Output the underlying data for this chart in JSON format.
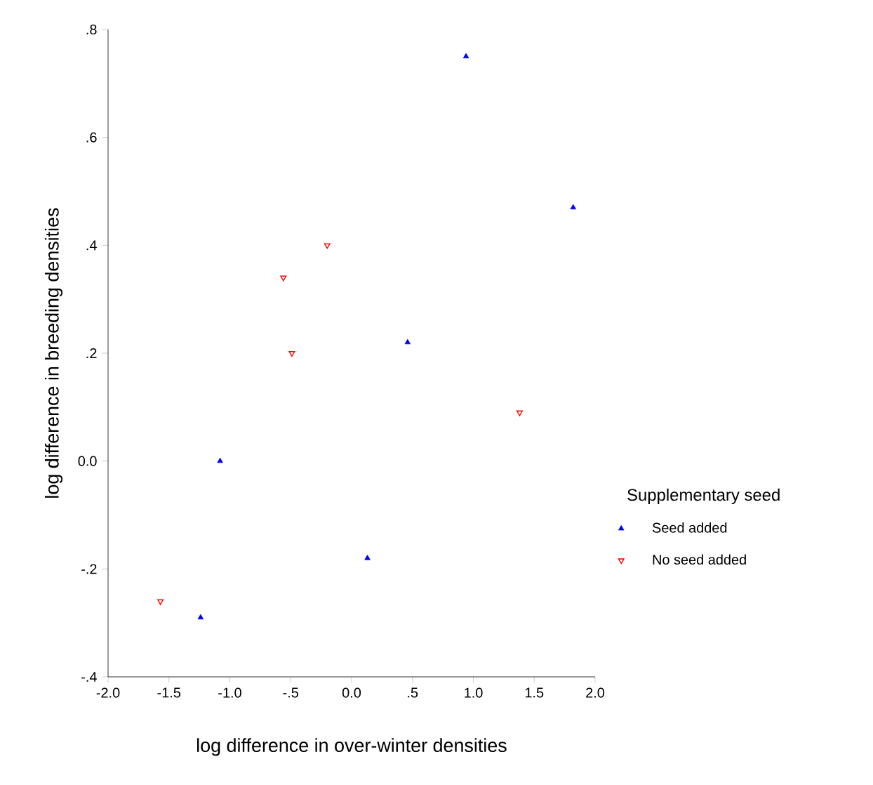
{
  "chart_data": {
    "type": "scatter",
    "xlabel": "log difference in over-winter densities",
    "ylabel": "log difference in breeding densities",
    "legend_title": "Supplementary seed",
    "legend": "right",
    "xlim": [
      -2.0,
      2.0
    ],
    "ylim": [
      -0.4,
      0.8
    ],
    "xticks": [
      {
        "value": -2.0,
        "label": "-2.0"
      },
      {
        "value": -1.5,
        "label": "-1.5"
      },
      {
        "value": -1.0,
        "label": "-1.0"
      },
      {
        "value": -0.5,
        "label": "-.5"
      },
      {
        "value": 0.0,
        "label": "0.0"
      },
      {
        "value": 0.5,
        "label": ".5"
      },
      {
        "value": 1.0,
        "label": "1.0"
      },
      {
        "value": 1.5,
        "label": "1.5"
      },
      {
        "value": 2.0,
        "label": "2.0"
      }
    ],
    "yticks": [
      {
        "value": -0.4,
        "label": "-.4"
      },
      {
        "value": -0.2,
        "label": "-.2"
      },
      {
        "value": 0.0,
        "label": "0.0"
      },
      {
        "value": 0.2,
        "label": ".2"
      },
      {
        "value": 0.4,
        "label": ".4"
      },
      {
        "value": 0.6,
        "label": ".6"
      },
      {
        "value": 0.8,
        "label": ".8"
      }
    ],
    "grid": false,
    "series": [
      {
        "name": "Seed added",
        "color": "#0000ff",
        "marker": "triangle",
        "x": [
          0.94,
          1.82,
          0.46,
          -1.08,
          0.13,
          -1.24
        ],
        "values": [
          0.75,
          0.47,
          0.22,
          0.0,
          -0.18,
          -0.29
        ]
      },
      {
        "name": "No seed added",
        "color": "#ff0000",
        "marker": "triangle-down",
        "x": [
          -0.2,
          -0.56,
          -0.49,
          1.38,
          -1.57
        ],
        "values": [
          0.4,
          0.34,
          0.2,
          0.09,
          -0.26
        ]
      }
    ]
  }
}
